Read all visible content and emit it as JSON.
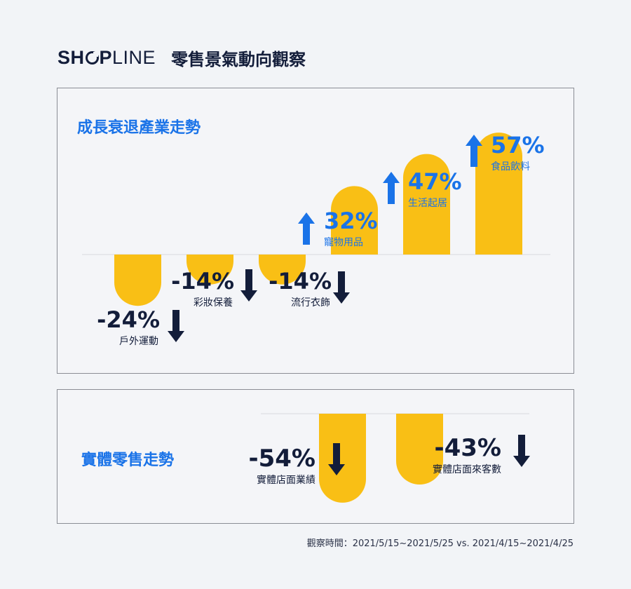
{
  "header": {
    "logo_text": "SHOPLINE",
    "title": "零售景氣動向觀察"
  },
  "colors": {
    "bar": "#f9bf15",
    "up": "#1a73e8",
    "down": "#131d3a"
  },
  "chart_data": [
    {
      "type": "bar",
      "title": "成長衰退產業走勢",
      "categories": [
        "戶外運動",
        "彩妝保養",
        "流行衣飾",
        "寵物用品",
        "生活起居",
        "食品飲料"
      ],
      "values": [
        -24,
        -14,
        -14,
        32,
        47,
        57
      ],
      "labels": [
        "-24%",
        "-14%",
        "-14%",
        "32%",
        "47%",
        "57%"
      ],
      "ylim": [
        -30,
        60
      ]
    },
    {
      "type": "bar",
      "title": "實體零售走勢",
      "categories": [
        "實體店面業績",
        "實體店面來客數"
      ],
      "values": [
        -54,
        -43
      ],
      "labels": [
        "-54%",
        "-43%"
      ],
      "ylim": [
        -60,
        0
      ]
    }
  ],
  "footnote": "觀察時間：2021/5/15~2021/5/25   vs. 2021/4/15~2021/4/25"
}
